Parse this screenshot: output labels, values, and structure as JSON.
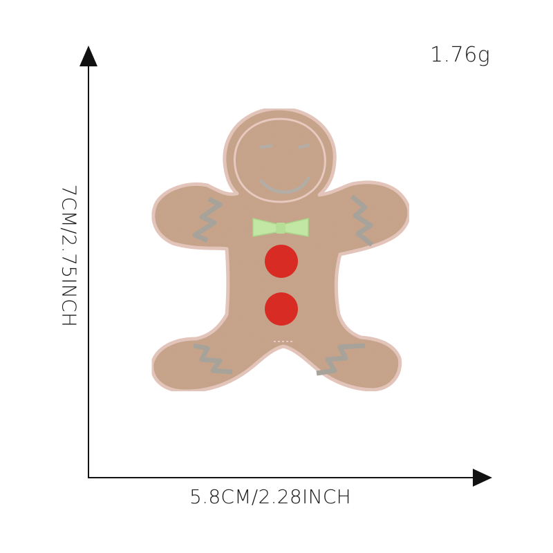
{
  "product": {
    "subject": "gingerbread-man-embroidered-patch",
    "weight_label": "1.76g",
    "width_label": "5.8CM/2.28INCH",
    "height_label": "7CM/2.75INCH"
  },
  "colors": {
    "background": "#ffffff",
    "felt": "#c9a68c",
    "felt_edge": "#e8c9bf",
    "zigzag": "#a7a39b",
    "face_stitch": "#b3ada6",
    "bow": "#c2e6a4",
    "button": "#d72b24",
    "axis": "#111111"
  }
}
